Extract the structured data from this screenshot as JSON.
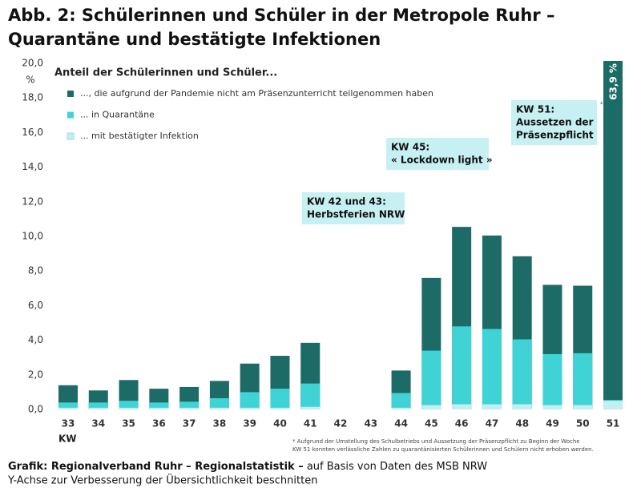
{
  "chart_data": {
    "type": "bar",
    "title": [
      "Abb. 2:  Schülerinnen und Schüler in der Metropole Ruhr –",
      "Quarantäne und bestätigte Infektionen"
    ],
    "y_unit": "%",
    "x_label": "KW",
    "legend_title": "Anteil der Schülerinnen und Schüler...",
    "categories": [
      "33",
      "34",
      "35",
      "36",
      "37",
      "38",
      "39",
      "40",
      "41",
      "42",
      "43",
      "44",
      "45",
      "46",
      "47",
      "48",
      "49",
      "50",
      "51"
    ],
    "series": [
      {
        "name": "..., die aufgrund der Pandemie nicht am Präsenzunterricht teilgenommen haben",
        "color": "#1d6b66",
        "values": [
          1.4,
          1.1,
          1.7,
          1.2,
          1.3,
          1.65,
          2.65,
          3.1,
          3.85,
          null,
          null,
          2.25,
          7.6,
          10.55,
          10.05,
          8.85,
          7.2,
          7.15,
          63.9
        ],
        "value_labels": [
          null,
          null,
          null,
          null,
          null,
          null,
          null,
          null,
          null,
          null,
          null,
          null,
          null,
          null,
          null,
          null,
          null,
          null,
          "63,9 %"
        ]
      },
      {
        "name": "... in Quarantäne",
        "color": "#3fd3d6",
        "values": [
          0.4,
          0.4,
          0.5,
          0.4,
          0.45,
          0.65,
          1.0,
          1.2,
          1.5,
          null,
          null,
          0.95,
          3.4,
          4.8,
          4.65,
          4.05,
          3.2,
          3.25,
          0.55
        ]
      },
      {
        "name": "... mit bestätigter Infektion",
        "color": "#c4eef0",
        "values": [
          0.1,
          0.1,
          0.1,
          0.1,
          0.1,
          0.1,
          0.1,
          0.1,
          0.15,
          null,
          null,
          0.1,
          0.25,
          0.3,
          0.3,
          0.3,
          0.25,
          0.25,
          0.5
        ]
      }
    ],
    "ylim": [
      0,
      20
    ],
    "yticks": [
      {
        "value": 0,
        "label": "0,0"
      },
      {
        "value": 2,
        "label": "2,0"
      },
      {
        "value": 4,
        "label": "4,0"
      },
      {
        "value": 6,
        "label": "6,0"
      },
      {
        "value": 8,
        "label": "8,0"
      },
      {
        "value": 10,
        "label": "10,0"
      },
      {
        "value": 12,
        "label": "12,0"
      },
      {
        "value": 14,
        "label": "14,0"
      },
      {
        "value": 16,
        "label": "16,0"
      },
      {
        "value": 18,
        "label": "18,0"
      },
      {
        "value": 20,
        "label": "20,0"
      }
    ],
    "grid": false,
    "annotations": [
      {
        "lines": [
          "KW 42 und 43:",
          "Herbstferien NRW"
        ]
      },
      {
        "lines": [
          "KW 45:",
          "« Lockdown light »"
        ]
      },
      {
        "lines": [
          "KW 51:",
          "Aussetzen der",
          "Präsenzpflicht"
        ]
      },
      {
        "lines": [
          "*"
        ]
      }
    ],
    "footnote": [
      "* Aufgrund der Umstellung des Schulbetriebs und Aussetzung der Präsenzpflicht zu Beginn der Woche",
      "KW 51 konnten verlässliche Zahlen zu quarantänisierten Schülerinnen und Schülern nicht erhoben werden."
    ],
    "source": {
      "bold": "Grafik: Regionalverband Ruhr – Regionalstatistik –",
      "regular": " auf Basis von Daten des MSB NRW"
    },
    "note": "Y-Achse zur Verbesserung der Übersichtlichkeit beschnitten"
  }
}
